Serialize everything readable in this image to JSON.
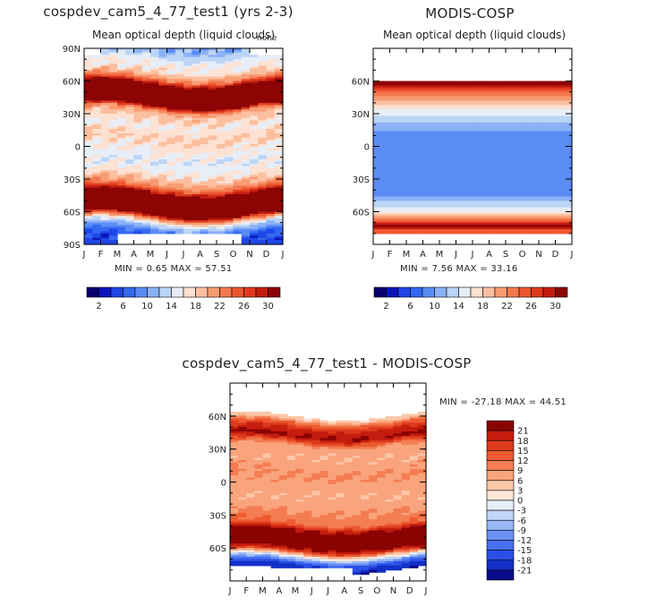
{
  "chart_data": [
    {
      "type": "heatmap",
      "title": "cospdev_cam5_4_77_test1 (yrs 2-3)",
      "subtitle": "Mean optical depth (liquid clouds)",
      "units_label": "none",
      "x_tick_labels": [
        "J",
        "F",
        "M",
        "A",
        "M",
        "J",
        "J",
        "A",
        "S",
        "O",
        "N",
        "D",
        "J"
      ],
      "y_tick_labels": [
        "90N",
        "60N",
        "30N",
        "0",
        "30S",
        "60S",
        "90S"
      ],
      "ylim": [
        -90,
        90
      ],
      "min_max_text": "MIN =    0.65  MAX =    57.51",
      "colorbar_labels": [
        "2",
        "6",
        "10",
        "14",
        "18",
        "22",
        "26",
        "30"
      ],
      "zonal_profile": {
        "lat": [
          -90,
          -86,
          -82,
          -78,
          -74,
          -70,
          -66,
          -62,
          -58,
          -54,
          -50,
          -46,
          -42,
          -38,
          -34,
          -30,
          -26,
          -22,
          -18,
          -14,
          -10,
          -6,
          -2,
          2,
          6,
          10,
          14,
          18,
          22,
          26,
          30,
          34,
          38,
          42,
          46,
          50,
          54,
          58,
          62,
          66,
          70,
          74,
          78,
          82,
          86,
          90
        ],
        "value": [
          5,
          5,
          6,
          8,
          11,
          15,
          22,
          32,
          38,
          40,
          40,
          37,
          30,
          24,
          21,
          19,
          17,
          16,
          15,
          15,
          15,
          16,
          16,
          17,
          18,
          18,
          17,
          16,
          17,
          18,
          19,
          22,
          32,
          40,
          40,
          40,
          36,
          30,
          23,
          20,
          17,
          16,
          16,
          14,
          12,
          11
        ]
      }
    },
    {
      "type": "heatmap",
      "title": "MODIS-COSP",
      "subtitle": "Mean optical depth (liquid clouds)",
      "x_tick_labels": [
        "J",
        "F",
        "M",
        "A",
        "M",
        "J",
        "J",
        "A",
        "S",
        "O",
        "N",
        "D",
        "J"
      ],
      "y_tick_labels": [
        "60N",
        "30N",
        "0",
        "30S",
        "60S"
      ],
      "ylim": [
        -90,
        90
      ],
      "min_max_text": "MIN =    7.56  MAX =    33.16",
      "colorbar_labels": [
        "2",
        "6",
        "10",
        "14",
        "18",
        "22",
        "26",
        "30"
      ],
      "zonal_profile": {
        "lat": [
          -90,
          -86,
          -82,
          -78,
          -74,
          -70,
          -66,
          -62,
          -58,
          -54,
          -50,
          -46,
          -42,
          -38,
          -34,
          -30,
          -26,
          -22,
          -18,
          -14,
          -10,
          -6,
          -2,
          2,
          6,
          10,
          14,
          18,
          22,
          26,
          30,
          34,
          38,
          42,
          46,
          50,
          54,
          58,
          62,
          66,
          70,
          74,
          78,
          82,
          86,
          90
        ],
        "value": [
          null,
          null,
          null,
          24,
          31,
          27,
          21,
          17,
          15,
          13,
          12,
          10,
          9,
          8.5,
          8,
          8,
          8,
          8,
          8,
          8,
          8,
          8,
          8,
          8,
          8,
          9,
          10,
          11,
          12,
          13,
          15,
          16,
          18,
          20,
          22,
          24,
          27,
          32,
          null,
          null,
          null,
          null,
          null,
          null,
          null,
          null
        ]
      }
    },
    {
      "type": "heatmap",
      "title": "cospdev_cam5_4_77_test1 - MODIS-COSP",
      "x_tick_labels": [
        "J",
        "F",
        "M",
        "A",
        "M",
        "J",
        "J",
        "A",
        "S",
        "O",
        "N",
        "D",
        "J"
      ],
      "y_tick_labels": [
        "60N",
        "30N",
        "0",
        "30S",
        "60S"
      ],
      "ylim": [
        -90,
        90
      ],
      "min_max_text": "MIN = -27.18  MAX =   44.51",
      "colorbar_labels": [
        "21",
        "18",
        "15",
        "12",
        "9",
        "6",
        "3",
        "0",
        "-3",
        "-6",
        "-9",
        "-12",
        "-15",
        "-18",
        "-21"
      ],
      "zonal_profile": {
        "lat": [
          -90,
          -86,
          -82,
          -78,
          -74,
          -70,
          -66,
          -62,
          -58,
          -54,
          -50,
          -46,
          -42,
          -38,
          -34,
          -30,
          -26,
          -22,
          -18,
          -14,
          -10,
          -6,
          -2,
          2,
          6,
          10,
          14,
          18,
          22,
          26,
          30,
          34,
          38,
          42,
          46,
          50,
          54,
          58,
          62,
          66,
          70,
          74,
          78,
          82,
          86,
          90
        ],
        "value": [
          null,
          null,
          null,
          -20,
          -17,
          -8,
          4,
          18,
          24,
          27,
          26,
          24,
          19,
          12,
          11,
          10,
          9,
          8,
          7,
          7,
          7,
          7,
          8,
          8,
          9,
          9,
          8,
          7,
          7,
          7,
          7,
          9,
          16,
          22,
          20,
          17,
          12,
          4,
          null,
          null,
          null,
          null,
          null,
          null,
          null,
          null
        ]
      }
    }
  ],
  "colors": {
    "abs_palette": [
      "#08006b",
      "#0b15ba",
      "#1f46e8",
      "#3468f0",
      "#5a8cf5",
      "#8bb1f7",
      "#bcd4f6",
      "#e7eef8",
      "#fde1d2",
      "#fbbf9f",
      "#f89c73",
      "#f4784e",
      "#ed5730",
      "#df3a1e",
      "#c21c10",
      "#8c0404"
    ],
    "diff_palette": [
      "#0a0a8a",
      "#1230c8",
      "#2a4fe6",
      "#4670f0",
      "#6a93f4",
      "#97b7f6",
      "#c2d6f7",
      "#e6eef8",
      "#fde6d8",
      "#fcc6a8",
      "#f9a47c",
      "#f47d52",
      "#ed5a31",
      "#dc3a1c",
      "#c41c0e",
      "#8b0303"
    ]
  }
}
